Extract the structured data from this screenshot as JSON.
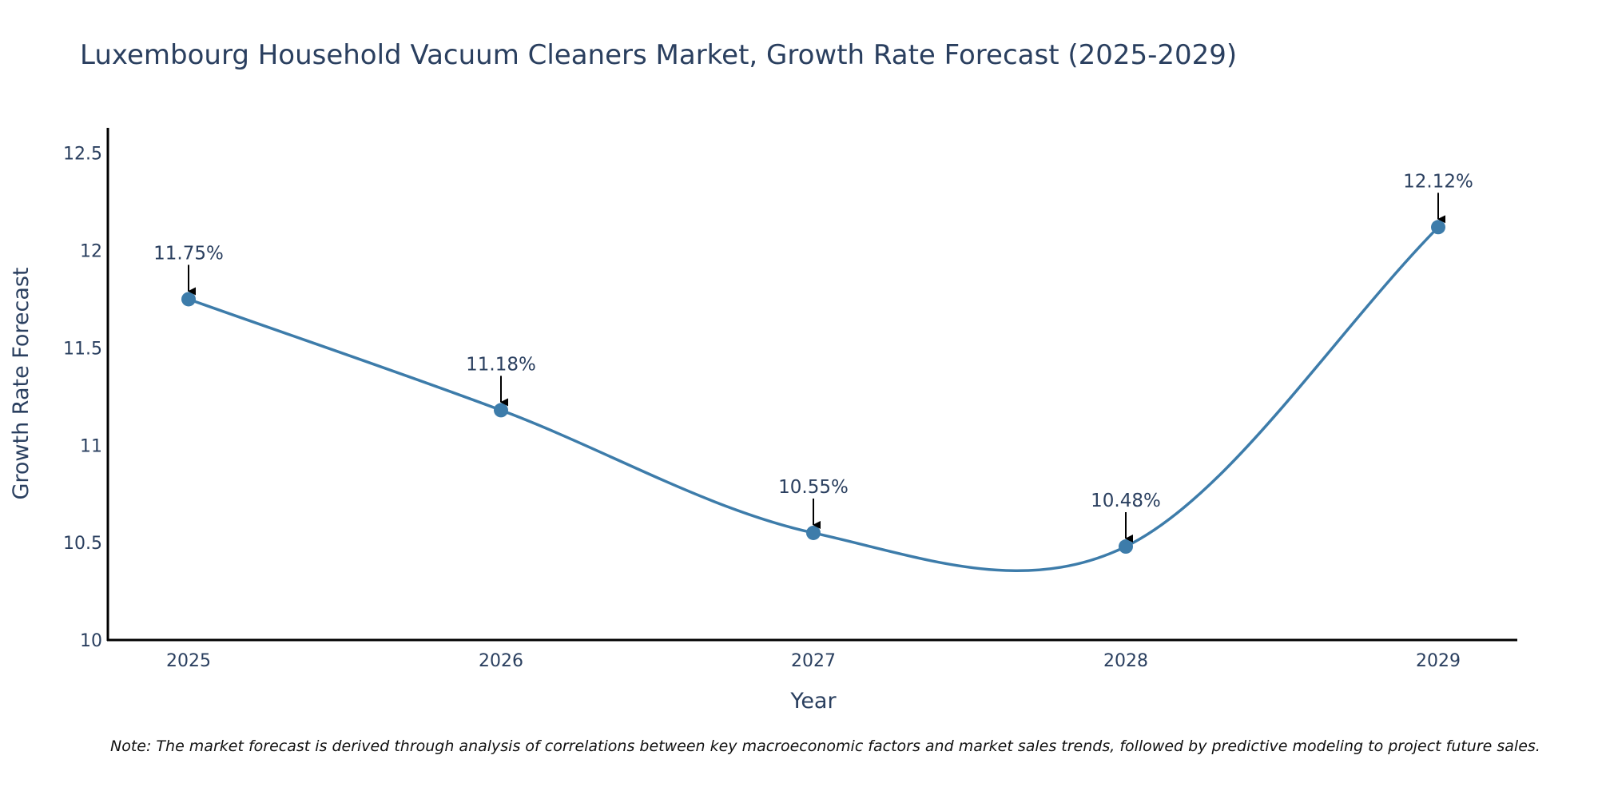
{
  "chart_data": {
    "type": "line",
    "title": "Luxembourg Household Vacuum Cleaners Market, Growth Rate Forecast (2025-2029)",
    "xlabel": "Year",
    "ylabel": "Growth Rate Forecast",
    "categories": [
      "2025",
      "2026",
      "2027",
      "2028",
      "2029"
    ],
    "series": [
      {
        "name": "Growth Rate Forecast",
        "values": [
          11.75,
          11.18,
          10.55,
          10.48,
          12.12
        ]
      }
    ],
    "data_labels": [
      "11.75%",
      "11.18%",
      "10.55%",
      "10.48%",
      "12.12%"
    ],
    "ylim": [
      10,
      12.63
    ],
    "yticks": [
      10,
      10.5,
      11,
      11.5,
      12,
      12.5
    ],
    "ytick_labels": [
      "10",
      "10.5",
      "11",
      "11.5",
      "12",
      "12.5"
    ],
    "line_color": "#3d7caa",
    "grid": false,
    "legend": "none"
  },
  "note": "Note: The market forecast is derived through analysis of correlations between key macroeconomic factors and market sales trends, followed by predictive modeling to project future sales."
}
